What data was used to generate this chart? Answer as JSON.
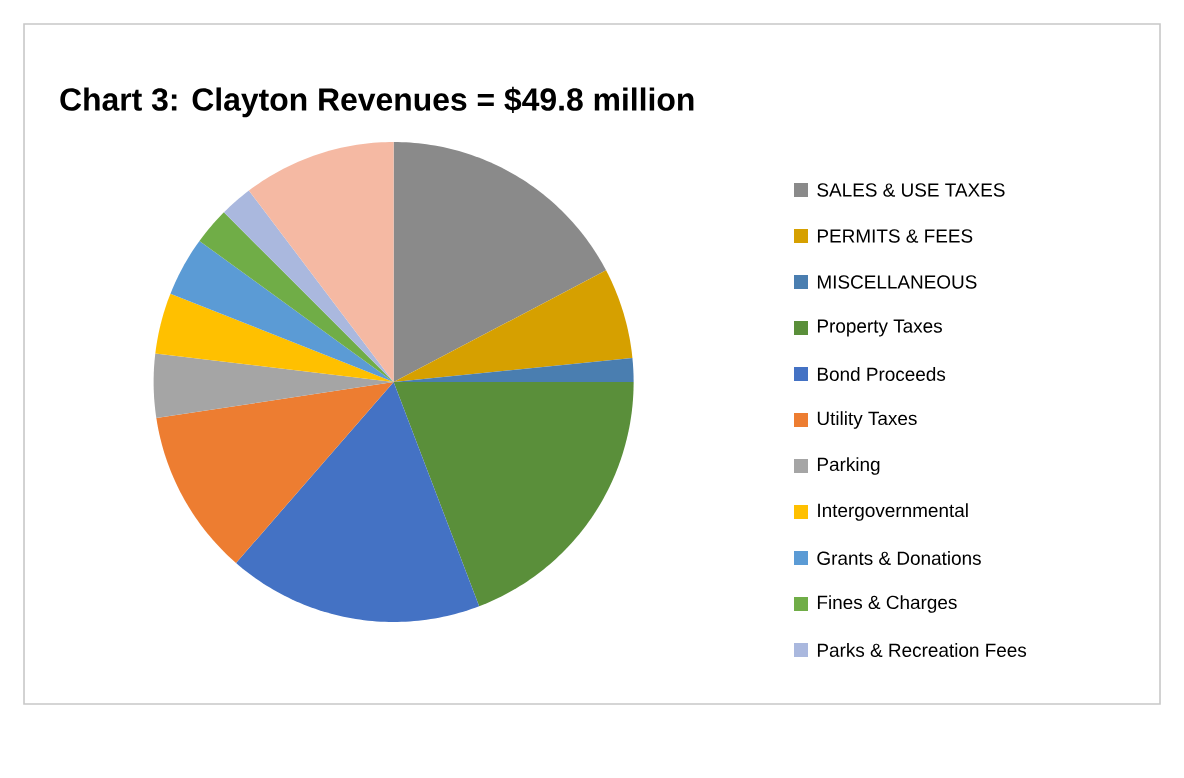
{
  "chart_data": {
    "type": "pie",
    "title": "Chart 3: Clayton Revenues = $49.8 million",
    "categories": [
      "SALES & USE TAXES",
      "PERMITS & FEES",
      "MISCELLANEOUS",
      "Property Taxes",
      "Bond Proceeds",
      "Utility Taxes",
      "Parking",
      "Intergovernmental",
      "Grants & Donations",
      "Fines & Charges",
      "Parks & Recreation Fees",
      null
    ],
    "values": [
      17.3,
      6.1,
      1.6,
      19.2,
      17.2,
      11.2,
      4.3,
      4.1,
      4.0,
      2.5,
      2.2,
      10.3
    ],
    "colors": [
      "#8a8a8a",
      "#d6a000",
      "#4a7eb0",
      "#5a8f3a",
      "#4472c4",
      "#ed7d31",
      "#a5a5a5",
      "#ffc000",
      "#5b9bd5",
      "#70ad47",
      "#aab8de",
      "#f5b9a3"
    ],
    "legend": "right"
  }
}
